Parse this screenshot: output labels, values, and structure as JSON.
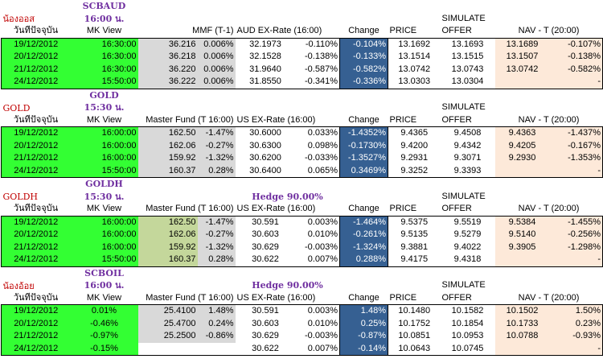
{
  "sections": [
    {
      "name": "น้องออส",
      "code": "SCBAUD",
      "time": "16:00 น.",
      "hedge": "",
      "headers": [
        "วันที่ปัจจุบัน",
        "MK View",
        "MMF (T-1)",
        "",
        "AUD EX-Rate (16:00)",
        "",
        "Change",
        "SIMULATE PRICE",
        "OFFER",
        "NAV - T (20:00)",
        ""
      ],
      "rows": [
        [
          "19/12/2012",
          "16:30:00",
          "36.216",
          "0.006%",
          "32.1973",
          "-0.110%",
          "-0.104%",
          "13.1692",
          "13.1693",
          "13.1689",
          "-0.107%"
        ],
        [
          "20/12/2012",
          "16:30:00",
          "36.218",
          "0.006%",
          "32.1528",
          "-0.138%",
          "-0.133%",
          "13.1514",
          "13.1515",
          "13.1507",
          "-0.138%"
        ],
        [
          "21/12/2012",
          "16:30:00",
          "36.220",
          "0.006%",
          "31.9640",
          "-0.587%",
          "-0.582%",
          "13.0742",
          "13.0743",
          "13.0742",
          "-0.582%"
        ],
        [
          "24/12/2012",
          "15:50:00",
          "36.222",
          "0.006%",
          "31.8550",
          "-0.341%",
          "-0.336%",
          "13.0303",
          "13.0304",
          "",
          "-"
        ]
      ]
    },
    {
      "name": "GOLD",
      "code": "GOLD",
      "time": "15:30 น.",
      "hedge": "",
      "headers": [
        "วันที่ปัจจุบัน",
        "MK View",
        "Master Fund (T 16:00)",
        "",
        "US EX-Rate (16:00)",
        "",
        "Change",
        "SIMULATE PRICE",
        "OFFER",
        "NAV - T (20:00)",
        ""
      ],
      "rows": [
        [
          "19/12/2012",
          "16:00:00",
          "162.50",
          "-1.47%",
          "30.6000",
          "0.033%",
          "-1.4352%",
          "9.4365",
          "9.4508",
          "9.4363",
          "-1.437%"
        ],
        [
          "20/12/2012",
          "16:00:00",
          "162.06",
          "-0.27%",
          "30.6300",
          "0.098%",
          "-0.1730%",
          "9.4200",
          "9.4342",
          "9.4205",
          "-0.167%"
        ],
        [
          "21/12/2012",
          "16:00:00",
          "159.92",
          "-1.32%",
          "30.6200",
          "-0.033%",
          "-1.3527%",
          "9.2931",
          "9.3071",
          "9.2930",
          "-1.353%"
        ],
        [
          "24/12/2012",
          "15:50:00",
          "160.37",
          "0.28%",
          "30.6400",
          "0.065%",
          "0.3469%",
          "9.3252",
          "9.3393",
          "",
          "-"
        ]
      ]
    },
    {
      "name": "GOLDH",
      "code": "GOLDH",
      "time": "15:30 น.",
      "hedge": "Hedge 90.00%",
      "headers": [
        "วันที่ปัจจุบัน",
        "MK View",
        "Master Fund (T 16:00)",
        "",
        "US EX-Rate (16:00)",
        "",
        "Change",
        "SIMULATE PRICE",
        "OFFER",
        "NAV - T (20:00)",
        ""
      ],
      "rows": [
        [
          "19/12/2012",
          "16:00:00",
          "162.50",
          "-1.47%",
          "30.591",
          "0.003%",
          "-1.464%",
          "9.5375",
          "9.5519",
          "9.5384",
          "-1.455%"
        ],
        [
          "20/12/2012",
          "16:00:00",
          "162.06",
          "-0.27%",
          "30.603",
          "0.010%",
          "-0.261%",
          "9.5135",
          "9.5279",
          "9.5140",
          "-0.256%"
        ],
        [
          "21/12/2012",
          "16:00:00",
          "159.92",
          "-1.32%",
          "30.629",
          "-0.003%",
          "-1.324%",
          "9.3881",
          "9.4022",
          "9.3905",
          "-1.298%"
        ],
        [
          "24/12/2012",
          "15:50:00",
          "160.37",
          "0.28%",
          "30.622",
          "0.007%",
          "0.288%",
          "9.4175",
          "9.4318",
          "",
          "-"
        ]
      ]
    },
    {
      "name": "น้องอ้อย",
      "code": "SCBOIL",
      "time": "16:00 น.",
      "hedge": "Hedge 90.00%",
      "headers": [
        "วันที่ปัจจุบัน",
        "MK View",
        "Master Fund (T 16:00)",
        "",
        "US EX-Rate (16:00)",
        "",
        "Change",
        "SIMULATE PRICE",
        "OFFER",
        "NAV - T (20:00)",
        ""
      ],
      "rows": [
        [
          "19/12/2012",
          "0.01%",
          "25.4100",
          "1.48%",
          "30.591",
          "0.003%",
          "1.48%",
          "10.1480",
          "10.1582",
          "10.1502",
          "1.50%"
        ],
        [
          "20/12/2012",
          "-0.46%",
          "25.4700",
          "0.24%",
          "30.603",
          "0.010%",
          "0.25%",
          "10.1752",
          "10.1854",
          "10.1733",
          "0.23%"
        ],
        [
          "21/12/2012",
          "-0.97%",
          "25.2500",
          "-0.86%",
          "30.629",
          "-0.003%",
          "-0.87%",
          "10.0851",
          "10.0953",
          "10.0788",
          "-0.93%"
        ],
        [
          "24/12/2012",
          "-0.15%",
          "",
          "",
          "30.622",
          "0.007%",
          "-0.14%",
          "10.0643",
          "10.0745",
          "",
          "-"
        ]
      ]
    }
  ],
  "colors": {
    "green": "#33ff33",
    "gray": "#d9d9d9",
    "olive": "#c4d79b",
    "blue": "#366092",
    "peach": "#fde9d9",
    "title_red": "#c00000",
    "purple": "#7030a0"
  }
}
